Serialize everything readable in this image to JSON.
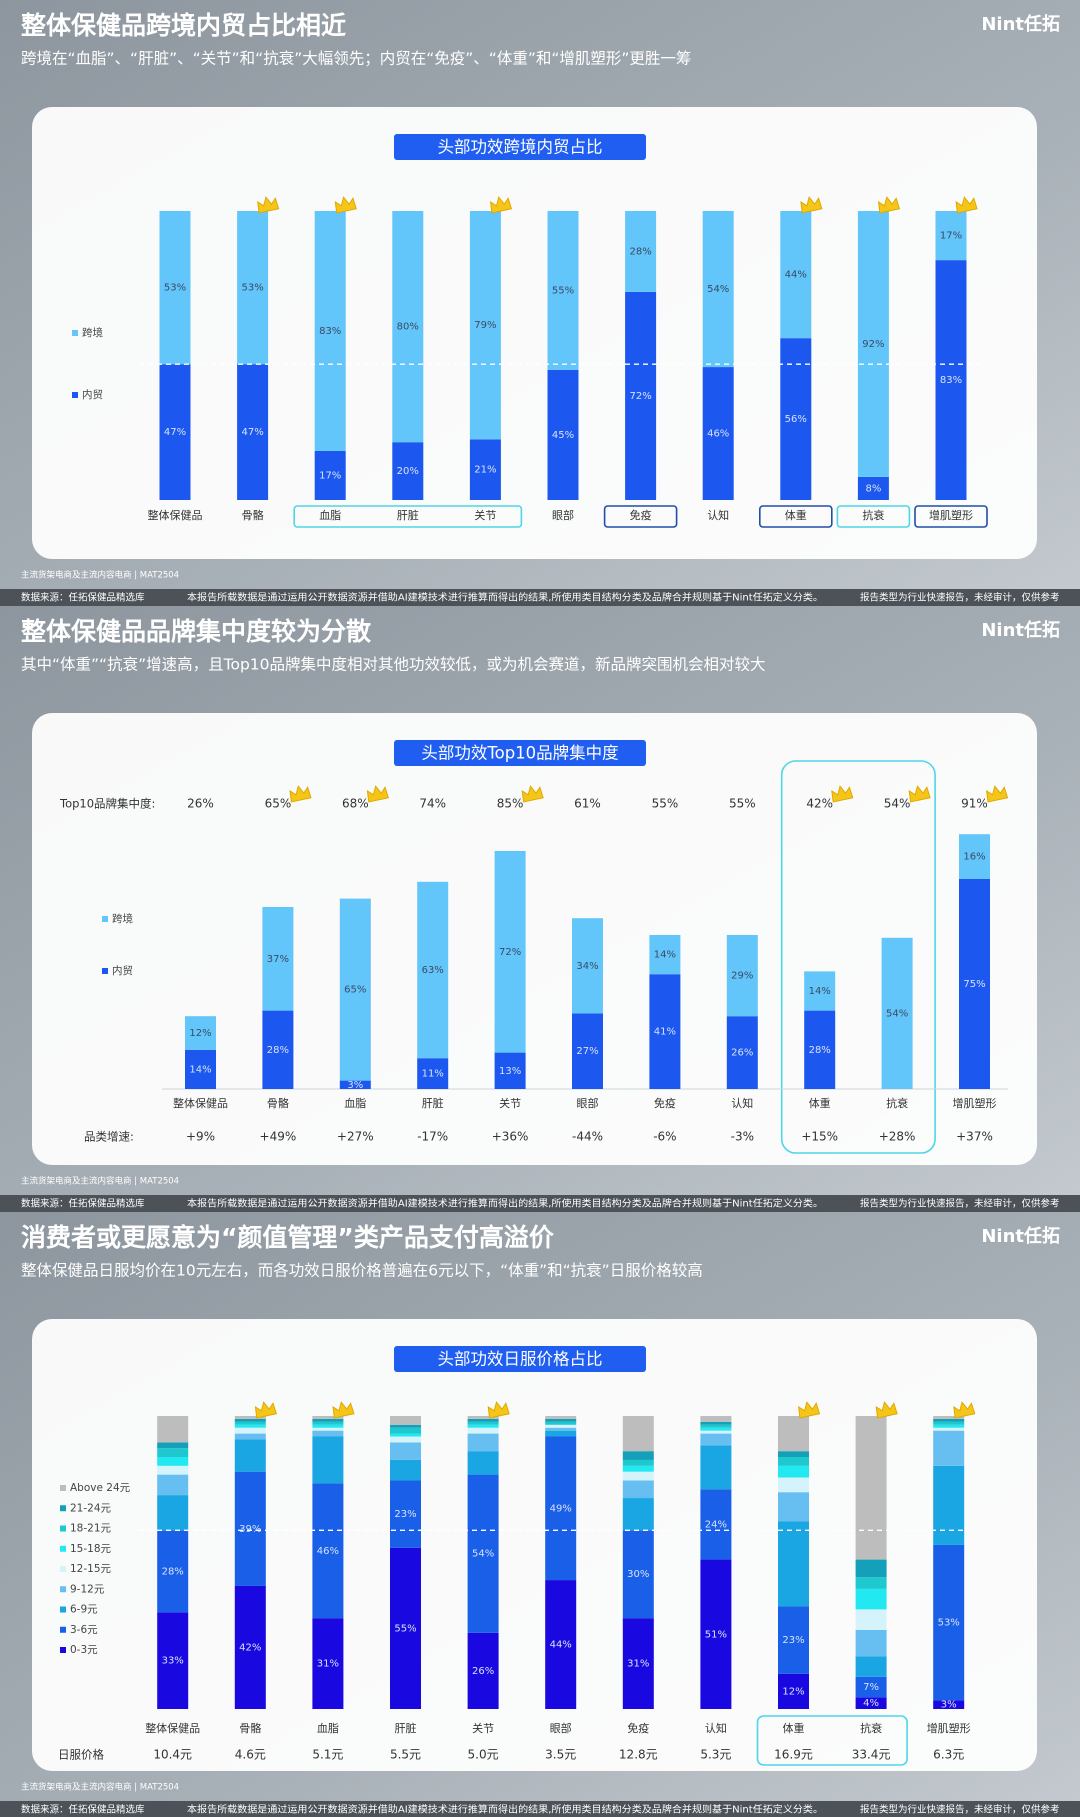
{
  "chart_data": [
    {
      "type": "bar",
      "stacked": true,
      "title": "整体保健品跨境内贸占比相近",
      "subtitle": "跨境在“血脂”、“肝脏”、“关节”和“抗衰”大幅领先；内贸在“免疫”、“体重”和“增肌塑形”更胜一筹",
      "logo": "Nint任拓",
      "chart_title": "头部功效跨境内贸占比",
      "source_note": "主流货架电商及主流内容电商 | MAT2504",
      "footer_left": "数据来源：任拓保健品精选库",
      "footer_center": "本报告所载数据是通过运用公开数据资源并借助AI建模技术进行推算而得出的结果,所使用类目结构分类及品牌合并规则基于Nint任拓定义分类。",
      "footer_right": "报告类型为行业快速报告，未经审计，仅供参考",
      "categories": [
        "整体保健品",
        "骨骼",
        "血脂",
        "肝脏",
        "关节",
        "眼部",
        "免疫",
        "认知",
        "体重",
        "抗衰",
        "增肌塑形"
      ],
      "series": [
        {
          "name": "跨境",
          "color": "#62c6fa",
          "label_color": "#3b4a66",
          "values": [
            53,
            53,
            83,
            80,
            79,
            55,
            28,
            54,
            44,
            92,
            17
          ],
          "value_labels": [
            "53%",
            "53%",
            "83%",
            "80%",
            "79%",
            "55%",
            "28%",
            "54%",
            "44%",
            "92%",
            "17%"
          ]
        },
        {
          "name": "内贸",
          "color": "#1c58ef",
          "label_color": "#d6e2ff",
          "values": [
            47,
            47,
            17,
            20,
            21,
            45,
            72,
            46,
            56,
            8,
            83
          ],
          "value_labels": [
            "47%",
            "47%",
            "17%",
            "20%",
            "21%",
            "45%",
            "72%",
            "46%",
            "56%",
            "8%",
            "83%"
          ]
        }
      ],
      "ylim": [
        0,
        100
      ],
      "legend": "left",
      "reference_line": {
        "category": 0,
        "series_below": 1
      },
      "crowned": [
        false,
        true,
        true,
        false,
        true,
        false,
        false,
        false,
        true,
        true,
        true
      ],
      "label_boxes": [
        {
          "from": 2,
          "to": 4,
          "color": "#4fd6e6"
        },
        {
          "from": 6,
          "to": 6,
          "color": "#1f4fa8"
        },
        {
          "from": 8,
          "to": 8,
          "color": "#1f4fa8"
        },
        {
          "from": 9,
          "to": 9,
          "color": "#4fd6e6"
        },
        {
          "from": 10,
          "to": 10,
          "color": "#1f4fa8"
        }
      ]
    },
    {
      "type": "bar",
      "stacked": true,
      "title": "整体保健品品牌集中度较为分散",
      "subtitle": "其中“体重”“抗衰”增速高，且Top10品牌集中度相对其他功效较低，或为机会赛道，新品牌突围机会相对较大",
      "logo": "Nint任拓",
      "chart_title": "头部功效Top10品牌集中度",
      "source_note": "主流货架电商及主流内容电商 | MAT2504",
      "footer_left": "数据来源：任拓保健品精选库",
      "footer_center": "本报告所载数据是通过运用公开数据资源并借助AI建模技术进行推算而得出的结果,所使用类目结构分类及品牌合并规则基于Nint任拓定义分类。",
      "footer_right": "报告类型为行业快速报告，未经审计，仅供参考",
      "categories": [
        "整体保健品",
        "骨骼",
        "血脂",
        "肝脏",
        "关节",
        "眼部",
        "免疫",
        "认知",
        "体重",
        "抗衰",
        "增肌塑形"
      ],
      "series": [
        {
          "name": "跨境",
          "color": "#62c6fa",
          "label_color": "#3b4a66",
          "values": [
            12,
            37,
            65,
            63,
            72,
            34,
            14,
            29,
            14,
            54,
            16
          ],
          "value_labels": [
            "12%",
            "37%",
            "65%",
            "63%",
            "72%",
            "34%",
            "14%",
            "29%",
            "14%",
            "54%",
            "16%"
          ]
        },
        {
          "name": "内贸",
          "color": "#1c58ef",
          "label_color": "#d6e2ff",
          "values": [
            14,
            28,
            3,
            11,
            13,
            27,
            41,
            26,
            28,
            0,
            75
          ],
          "value_labels": [
            "14%",
            "28%",
            "3%",
            "11%",
            "13%",
            "27%",
            "41%",
            "26%",
            "28%",
            null,
            "75%"
          ]
        }
      ],
      "ylim": [
        0,
        100
      ],
      "legend": "left",
      "rows": [
        {
          "label": "Top10品牌集中度:",
          "position": "top",
          "values": [
            26,
            65,
            68,
            74,
            85,
            61,
            55,
            55,
            42,
            54,
            91
          ],
          "value_labels": [
            "26%",
            "65%",
            "68%",
            "74%",
            "85%",
            "61%",
            "55%",
            "55%",
            "42%",
            "54%",
            "91%"
          ]
        },
        {
          "label": "品类增速:",
          "position": "bottom",
          "values": [
            9,
            49,
            27,
            -17,
            36,
            -44,
            -6,
            -3,
            15,
            28,
            37
          ],
          "value_labels": [
            "+9%",
            "+49%",
            "+27%",
            "-17%",
            "+36%",
            "-44%",
            "-6%",
            "-3%",
            "+15%",
            "+28%",
            "+37%"
          ]
        }
      ],
      "crowned": [
        false,
        true,
        true,
        false,
        true,
        false,
        false,
        false,
        true,
        true,
        true
      ],
      "highlight": {
        "from": 8,
        "to": 9,
        "color": "#4fd6e6"
      }
    },
    {
      "type": "bar",
      "stacked": true,
      "title": "消费者或更愿意为“颜值管理”类产品支付高溢价",
      "subtitle": "整体保健品日服均价在10元左右，而各功效日服价格普遍在6元以下，“体重”和“抗衰”日服价格较高",
      "logo": "Nint任拓",
      "chart_title": "头部功效日服价格占比",
      "source_note": "主流货架电商及主流内容电商 | MAT2504",
      "footer_left": "数据来源：任拓保健品精选库",
      "footer_center": "本报告所载数据是通过运用公开数据资源并借助AI建模技术进行推算而得出的结果,所使用类目结构分类及品牌合并规则基于Nint任拓定义分类。",
      "footer_right": "报告类型为行业快速报告，未经审计，仅供参考",
      "categories": [
        "整体保健品",
        "骨骼",
        "血脂",
        "肝脏",
        "关节",
        "眼部",
        "免疫",
        "认知",
        "体重",
        "抗衰",
        "增肌塑形"
      ],
      "series": [
        {
          "name": "Above 24元",
          "color": "#bdbdbd",
          "values": [
            9,
            1,
            1,
            3,
            1,
            1,
            12,
            2,
            12,
            49,
            1
          ]
        },
        {
          "name": "21-24元",
          "color": "#14a0b8",
          "values": [
            2,
            1,
            1,
            1,
            1,
            1,
            3,
            1,
            2,
            6,
            1
          ]
        },
        {
          "name": "18-21元",
          "color": "#1ec8cf",
          "values": [
            3,
            1,
            1,
            2,
            1,
            1,
            2,
            1,
            3,
            4,
            1
          ]
        },
        {
          "name": "15-18元",
          "color": "#22e8f2",
          "values": [
            3,
            1,
            1,
            1,
            1,
            0,
            2,
            1,
            4,
            7,
            1
          ]
        },
        {
          "name": "12-15元",
          "color": "#d5f3fb",
          "values": [
            3,
            2,
            1,
            2,
            2,
            1,
            3,
            1,
            5,
            7,
            1
          ]
        },
        {
          "name": "9-12元",
          "color": "#66bff0",
          "values": [
            7,
            2,
            2,
            6,
            6,
            1,
            6,
            4,
            10,
            9,
            12
          ]
        },
        {
          "name": "6-9元",
          "color": "#1aa6e2",
          "values": [
            12,
            11,
            16,
            7,
            8,
            2,
            11,
            15,
            29,
            7,
            27
          ]
        },
        {
          "name": "3-6元",
          "color": "#1a5fe8",
          "label_color": "#d6e2ff",
          "values": [
            28,
            39,
            46,
            23,
            54,
            49,
            30,
            24,
            23,
            7,
            53
          ],
          "value_labels": [
            "28%",
            "39%",
            "46%",
            "23%",
            "54%",
            "49%",
            "30%",
            "24%",
            "23%",
            "7%",
            "53%"
          ]
        },
        {
          "name": "0-3元",
          "color": "#1a08e0",
          "label_color": "#d6e2ff",
          "values": [
            33,
            42,
            31,
            55,
            26,
            44,
            31,
            51,
            12,
            4,
            3
          ],
          "value_labels": [
            "33%",
            "42%",
            "31%",
            "55%",
            "26%",
            "44%",
            "31%",
            "51%",
            "12%",
            "4%",
            "3%"
          ]
        }
      ],
      "ylim": [
        0,
        100
      ],
      "legend": "left",
      "reference_line": {
        "category": 0,
        "series_below": 2
      },
      "rows": [
        {
          "label": "日服价格",
          "position": "bottom",
          "values": [
            10.4,
            4.6,
            5.1,
            5.5,
            5.0,
            3.5,
            12.8,
            5.3,
            16.9,
            33.4,
            6.3
          ],
          "value_labels": [
            "10.4元",
            "4.6元",
            "5.1元",
            "5.5元",
            "5.0元",
            "3.5元",
            "12.8元",
            "5.3元",
            "16.9元",
            "33.4元",
            "6.3元"
          ]
        }
      ],
      "crowned": [
        false,
        true,
        true,
        false,
        true,
        false,
        false,
        false,
        true,
        true,
        true
      ],
      "label_boxes": [
        {
          "from": 8,
          "to": 9,
          "color": "#4fd6e6"
        }
      ]
    }
  ]
}
